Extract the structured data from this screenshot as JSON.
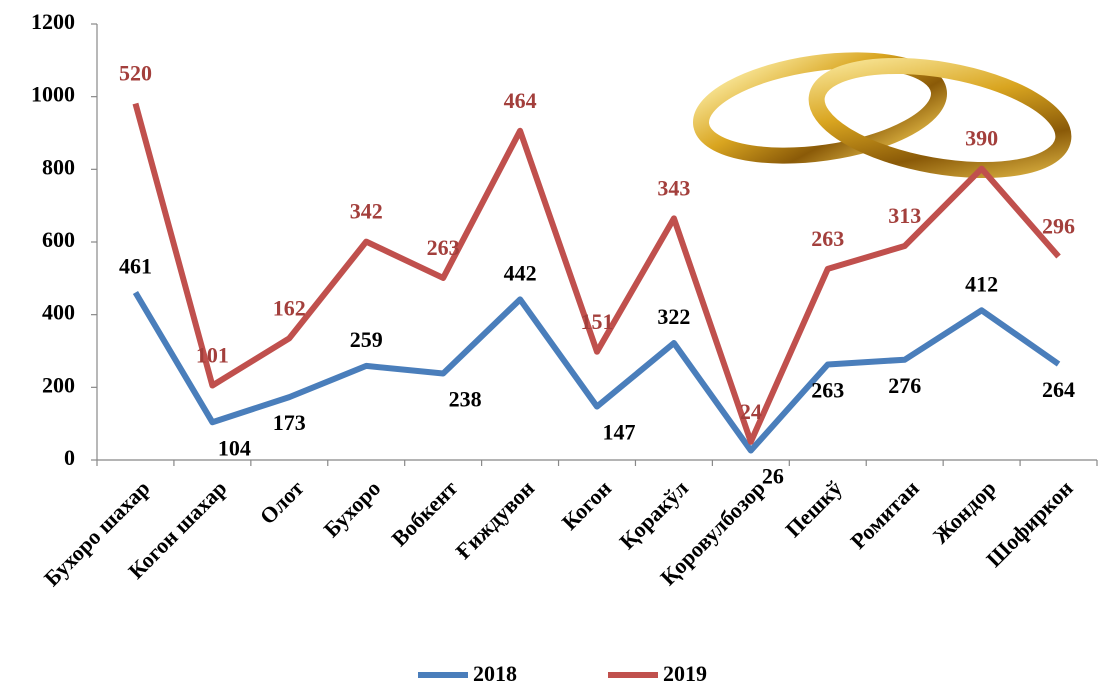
{
  "chart_data": {
    "type": "line",
    "stacked": true,
    "categories": [
      "Бухоро шахар",
      "Когон шахар",
      "Олот",
      "Бухоро",
      "Вобкент",
      "Ғиждувон",
      "Когон",
      "Қоракўл",
      "Қоровулбозор",
      "Пешкў",
      "Ромитан",
      "Жондор",
      "Шофиркон"
    ],
    "series": [
      {
        "name": "2018",
        "color": "#4a7ebb",
        "values": [
          461,
          104,
          173,
          259,
          238,
          442,
          147,
          322,
          26,
          263,
          276,
          412,
          264
        ]
      },
      {
        "name": "2019",
        "color": "#c0504d",
        "values": [
          520,
          101,
          162,
          342,
          263,
          464,
          151,
          343,
          24,
          263,
          313,
          390,
          296
        ]
      }
    ],
    "ylim": [
      0,
      1200
    ],
    "yticks": [
      0,
      200,
      400,
      600,
      800,
      1000,
      1200
    ],
    "grid": false,
    "legend": "bottom"
  }
}
